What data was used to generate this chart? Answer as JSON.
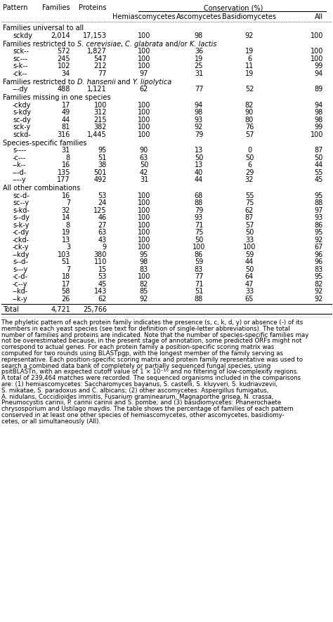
{
  "col_headers": [
    "Pattern",
    "Families",
    "Proteins",
    "Hemiascomycetes",
    "Ascomycetes",
    "Basidiomycetes",
    "All"
  ],
  "conservation_header": "Conservation (%)",
  "sections": [
    {
      "header": "Families universal to all",
      "italic_parts": [],
      "rows": [
        [
          "sckdy",
          "2,014",
          "17,153",
          "100",
          "98",
          "92",
          "100"
        ]
      ]
    },
    {
      "header": "Families restricted to S. cerevisiae, C. glabrata and/or K. lactis",
      "italic_parts": [
        "S. cerevisiae",
        "C. glabrata",
        "K. lactis"
      ],
      "rows": [
        [
          "sck--",
          "572",
          "1,827",
          "100",
          "36",
          "19",
          "100"
        ],
        [
          "sc---",
          "245",
          "547",
          "100",
          "19",
          "6",
          "100"
        ],
        [
          "s-k--",
          "102",
          "212",
          "100",
          "25",
          "11",
          "99"
        ],
        [
          "-ck--",
          "34",
          "77",
          "97",
          "31",
          "19",
          "94"
        ]
      ]
    },
    {
      "header": "Families restricted to D. hansenii and Y. lipolytica",
      "italic_parts": [
        "D. hansenii",
        "Y. lipolytica"
      ],
      "rows": [
        [
          "---dy",
          "488",
          "1,121",
          "62",
          "77",
          "52",
          "89"
        ]
      ]
    },
    {
      "header": "Families missing in one species",
      "italic_parts": [],
      "rows": [
        [
          "-ckdy",
          "17",
          "100",
          "100",
          "94",
          "82",
          "94"
        ],
        [
          "s-kdy",
          "49",
          "312",
          "100",
          "98",
          "90",
          "98"
        ],
        [
          "sc-dy",
          "44",
          "215",
          "100",
          "93",
          "80",
          "98"
        ],
        [
          "sck-y",
          "81",
          "382",
          "100",
          "92",
          "76",
          "99"
        ],
        [
          "sckd-",
          "316",
          "1,445",
          "100",
          "79",
          "57",
          "100"
        ]
      ]
    },
    {
      "header": "Species-specific families",
      "italic_parts": [],
      "rows": [
        [
          "s----",
          "31",
          "95",
          "90",
          "13",
          "0",
          "87"
        ],
        [
          "-c---",
          "8",
          "51",
          "63",
          "50",
          "50",
          "50"
        ],
        [
          "--k--",
          "16",
          "38",
          "50",
          "13",
          "6",
          "44"
        ],
        [
          "---d-",
          "135",
          "501",
          "42",
          "40",
          "29",
          "55"
        ],
        [
          "----y",
          "177",
          "492",
          "31",
          "44",
          "32",
          "45"
        ]
      ]
    },
    {
      "header": "All other combinations",
      "italic_parts": [],
      "rows": [
        [
          "sc-d-",
          "16",
          "53",
          "100",
          "68",
          "55",
          "95"
        ],
        [
          "sc--y",
          "7",
          "24",
          "100",
          "88",
          "75",
          "88"
        ],
        [
          "s-kd-",
          "32",
          "125",
          "100",
          "79",
          "62",
          "97"
        ],
        [
          "s--dy",
          "14",
          "46",
          "100",
          "93",
          "87",
          "93"
        ],
        [
          "s-k-y",
          "8",
          "27",
          "100",
          "71",
          "57",
          "86"
        ],
        [
          "-c-dy",
          "19",
          "63",
          "100",
          "75",
          "50",
          "95"
        ],
        [
          "-ckd-",
          "13",
          "43",
          "100",
          "50",
          "33",
          "92"
        ],
        [
          "-ck-y",
          "3",
          "9",
          "100",
          "100",
          "100",
          "67"
        ],
        [
          "--kdy",
          "103",
          "380",
          "95",
          "86",
          "59",
          "96"
        ],
        [
          "s--d-",
          "51",
          "110",
          "98",
          "59",
          "44",
          "96"
        ],
        [
          "s---y",
          "7",
          "15",
          "83",
          "83",
          "50",
          "83"
        ],
        [
          "-c-d-",
          "18",
          "53",
          "100",
          "77",
          "64",
          "95"
        ],
        [
          "-c--y",
          "17",
          "45",
          "82",
          "71",
          "47",
          "82"
        ],
        [
          "--kd-",
          "58",
          "143",
          "85",
          "51",
          "33",
          "92"
        ],
        [
          "--k-y",
          "26",
          "62",
          "92",
          "88",
          "65",
          "92"
        ]
      ]
    }
  ],
  "total_row": [
    "Total",
    "4,721",
    "25,766"
  ],
  "footnote_lines": [
    "The phyletic pattern of each protein family indicates the presence (s, c, k, d, y) or absence (-) of its",
    "members in each yeast species (see text for definition of single-letter abbreviations). The total",
    "number of families and proteins are indicated. Note that the number of species-specific families may",
    "not be overestimated because, in the present stage of annotation, some predicted ORFs might not",
    "correspond to actual genes. For each protein family a position-specific scoring matrix was",
    "computed for two rounds using BLASTpgp, with the longest member of the family serving as",
    "representative. Each position-specific scoring matrix and protein family representative was used to",
    "search a combined data bank of completely or partially sequenced fungal species, using",
    "psitBLASTn, with an expected cutoff value of 1 × 10⁻¹⁰ and no filtering of low-complexity regions.",
    "A total of 239,464 matches were recorded. The sequenced organisms included in the comparisons",
    "are: (1) hemiascomycetes: Saccharomyces bayanus, S. castelli, S. kluyveri, S. kudriavzevii,",
    "S. mikatae, S. paradoxus and C. albicans; (2) other ascomycetes: Aspergillus fumigatus,",
    "A. nidulans, Coccidioides immitis, Fusarium graminearum, Magnaporthe grisea, N. crassa,",
    "Pneumocystis carinii, P. carinii carinii and S. pombe; and (3) basidiomycetes: Phanerochaete",
    "chrysosporium and Ustilago maydis. The table shows the percentage of families of each pattern",
    "conserved in at least one other species of hemiascomycetes, other ascomycetes, basidiomy-",
    "cetes, or all simultaneously (All)."
  ],
  "bg_color": "#ffffff"
}
